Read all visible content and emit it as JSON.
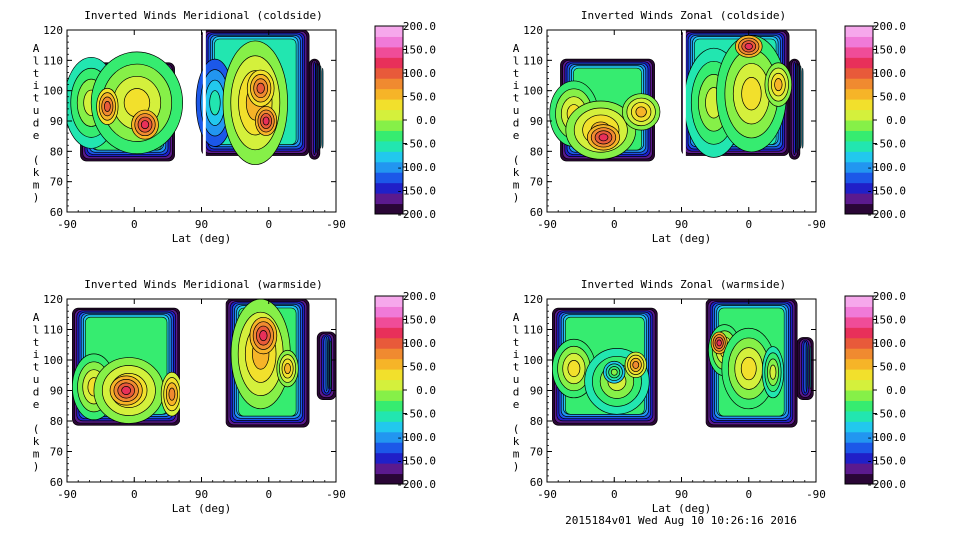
{
  "colors": {
    "background": "#ffffff",
    "axis": "#000000",
    "contour_line": "#000000",
    "colormap": [
      "#2a0636",
      "#5b1a8e",
      "#2020c8",
      "#1c58e8",
      "#2296f0",
      "#22c8ee",
      "#22e6b0",
      "#36ec70",
      "#86f048",
      "#d4f03c",
      "#f2e02c",
      "#f6b428",
      "#f08a30",
      "#e85a3a",
      "#e8305a",
      "#f04c98",
      "#f07ad8",
      "#f6a8ec"
    ]
  },
  "footer_text": "2015184v01 Wed Aug 10 10:26:16 2016",
  "chart_data": [
    {
      "type": "heatmap",
      "title": "Inverted Winds Meridional (coldside)",
      "xlabel": "Lat (deg)",
      "ylabel": "Altitude (km)",
      "x_ticks": [
        "-90",
        "0",
        "90",
        "0",
        "-90"
      ],
      "y_ticks": [
        "60",
        "70",
        "80",
        "90",
        "100",
        "110",
        "120"
      ],
      "ylim": [
        60,
        120
      ],
      "colorbar_ticks": [
        "200.0",
        "150.0",
        "100.0",
        "50.0",
        "0.0",
        "-50.0",
        "-100.0",
        "-150.0",
        "-200.0"
      ],
      "colorbar_range": [
        -200,
        200
      ]
    },
    {
      "type": "heatmap",
      "title": "Inverted Winds Zonal (coldside)",
      "xlabel": "Lat (deg)",
      "ylabel": "Altitude (km)",
      "x_ticks": [
        "-90",
        "0",
        "90",
        "0",
        "-90"
      ],
      "y_ticks": [
        "60",
        "70",
        "80",
        "90",
        "100",
        "110",
        "120"
      ],
      "ylim": [
        60,
        120
      ],
      "colorbar_ticks": [
        "200.0",
        "150.0",
        "100.0",
        "50.0",
        "0.0",
        "-50.0",
        "-100.0",
        "-150.0",
        "-200.0"
      ],
      "colorbar_range": [
        -200,
        200
      ]
    },
    {
      "type": "heatmap",
      "title": "Inverted Winds Meridional (warmside)",
      "xlabel": "Lat (deg)",
      "ylabel": "Altitude (km)",
      "x_ticks": [
        "-90",
        "0",
        "90",
        "0",
        "-90"
      ],
      "y_ticks": [
        "60",
        "70",
        "80",
        "90",
        "100",
        "110",
        "120"
      ],
      "ylim": [
        60,
        120
      ],
      "colorbar_ticks": [
        "200.0",
        "150.0",
        "100.0",
        "50.0",
        "0.0",
        "-50.0",
        "-100.0",
        "-150.0",
        "-200.0"
      ],
      "colorbar_range": [
        -200,
        200
      ]
    },
    {
      "type": "heatmap",
      "title": "Inverted Winds Zonal (warmside)",
      "xlabel": "Lat (deg)",
      "ylabel": "Altitude (km)",
      "x_ticks": [
        "-90",
        "0",
        "90",
        "0",
        "-90"
      ],
      "y_ticks": [
        "60",
        "70",
        "80",
        "90",
        "100",
        "110",
        "120"
      ],
      "ylim": [
        60,
        120
      ],
      "colorbar_ticks": [
        "200.0",
        "150.0",
        "100.0",
        "50.0",
        "0.0",
        "-50.0",
        "-100.0",
        "-150.0",
        "-200.0"
      ],
      "colorbar_range": [
        -200,
        200
      ]
    }
  ]
}
